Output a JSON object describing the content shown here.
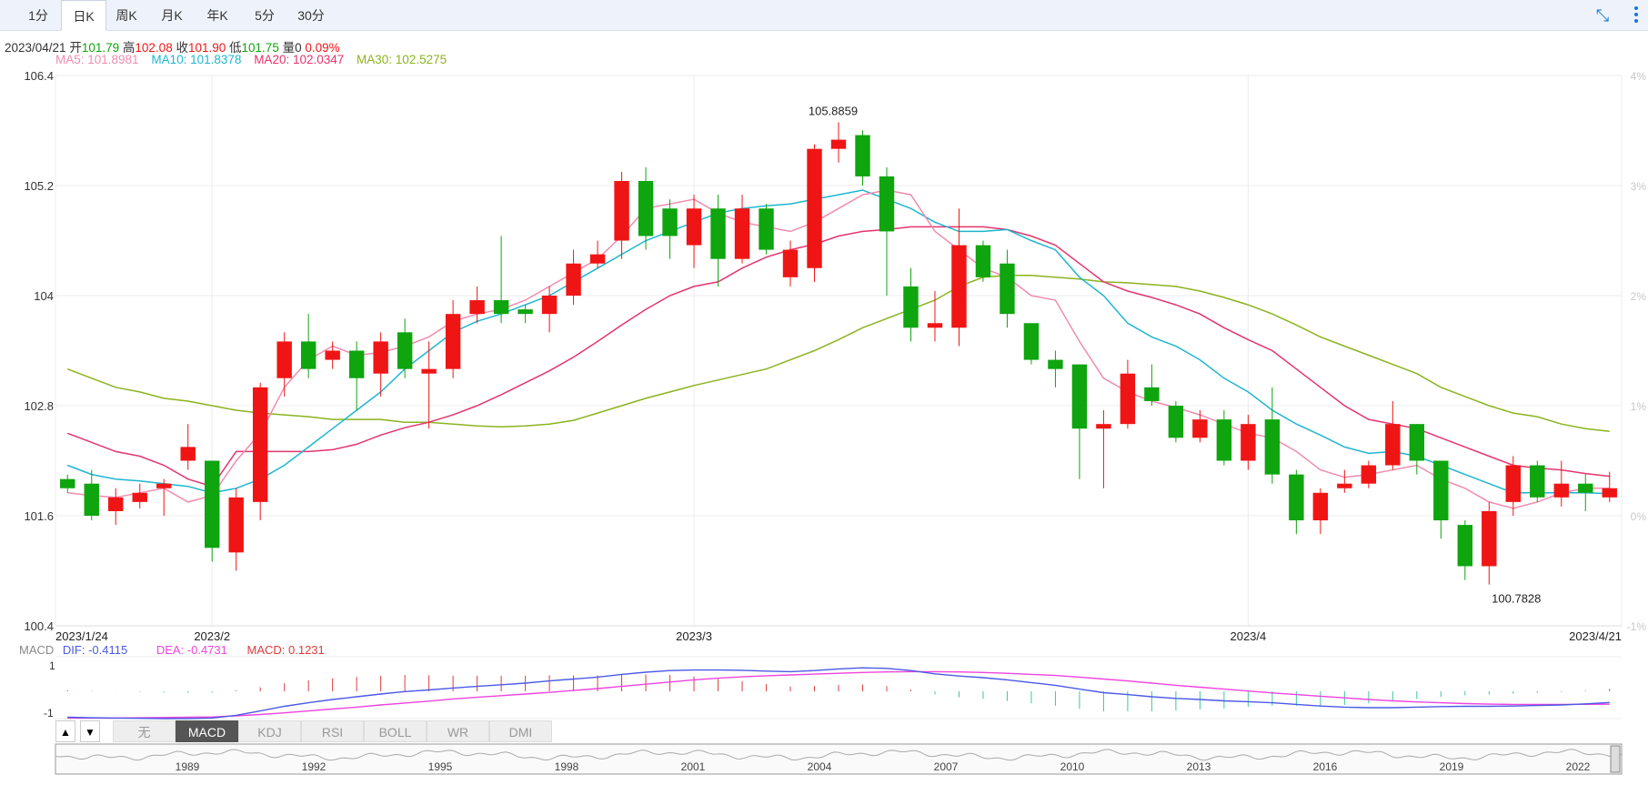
{
  "tabs": [
    {
      "label": "1分",
      "active": false
    },
    {
      "label": "日K",
      "active": true
    },
    {
      "label": "周K",
      "active": false
    },
    {
      "label": "月K",
      "active": false
    },
    {
      "label": "年K",
      "active": false
    },
    {
      "label": "5分",
      "active": false
    },
    {
      "label": "30分",
      "active": false
    }
  ],
  "info": {
    "date": "2023/04/21",
    "open_label": "开",
    "open": "101.79",
    "high_label": "高",
    "high": "102.08",
    "close_label": "收",
    "close": "101.90",
    "low_label": "低",
    "low": "101.75",
    "vol_label": "量",
    "vol": "0",
    "pct": "0.09%"
  },
  "ma": [
    {
      "label": "MA5: 101.8981",
      "color": "#f08cb0"
    },
    {
      "label": "MA10: 101.8378",
      "color": "#1fb6d0"
    },
    {
      "label": "MA20: 102.0347",
      "color": "#e4346d"
    },
    {
      "label": "MA30: 102.5275",
      "color": "#8bb31e"
    }
  ],
  "colors": {
    "up": "#f01515",
    "down": "#0ea50e",
    "grid": "#ececec",
    "axis": "#444"
  },
  "macd": {
    "label": "MACD",
    "dif_label": "DIF: -0.4115",
    "dea_label": "DEA: -0.4731",
    "macd_label": "MACD: 0.1231",
    "dif_color": "#4b59e6",
    "dea_color": "#ee44dd",
    "macd_color": "#e03a3a",
    "yticks": [
      "1",
      "-1"
    ]
  },
  "indicator_tabs": [
    {
      "label": "无",
      "active": false
    },
    {
      "label": "MACD",
      "active": true
    },
    {
      "label": "KDJ",
      "active": false
    },
    {
      "label": "RSI",
      "active": false
    },
    {
      "label": "BOLL",
      "active": false
    },
    {
      "label": "WR",
      "active": false
    },
    {
      "label": "DMI",
      "active": false
    }
  ],
  "nav_buttons": {
    "up": "▲",
    "down": "▼"
  },
  "timeline_years": [
    "1989",
    "1992",
    "1995",
    "1998",
    "2001",
    "2004",
    "2007",
    "2010",
    "2013",
    "2016",
    "2019",
    "2022"
  ],
  "chart_data": {
    "type": "candlestick",
    "ylim": [
      100.4,
      106.4
    ],
    "yticks": [
      "106.4",
      "105.2",
      "104",
      "102.8",
      "101.6",
      "100.4"
    ],
    "right_pct_ticks": [
      "4%",
      "3%",
      "2%",
      "1%",
      "0%",
      "-1%"
    ],
    "x_tick_labels": [
      "2023/1/24",
      "2023/2",
      "2023/3",
      "2023/4",
      "2023/4/21"
    ],
    "annotations": {
      "max": "105.8859",
      "min": "100.7828"
    },
    "candles": [
      [
        102.0,
        101.9,
        102.05,
        101.85
      ],
      [
        101.95,
        101.6,
        102.1,
        101.55
      ],
      [
        101.65,
        101.8,
        101.9,
        101.5
      ],
      [
        101.75,
        101.85,
        101.95,
        101.68
      ],
      [
        101.9,
        101.95,
        102.0,
        101.6
      ],
      [
        102.2,
        102.35,
        102.6,
        102.1
      ],
      [
        102.2,
        101.25,
        102.2,
        101.1
      ],
      [
        101.2,
        101.8,
        101.9,
        101.0
      ],
      [
        101.75,
        103.0,
        103.05,
        101.55
      ],
      [
        103.1,
        103.5,
        103.6,
        102.9
      ],
      [
        103.5,
        103.2,
        103.8,
        103.1
      ],
      [
        103.3,
        103.4,
        103.5,
        103.2
      ],
      [
        103.4,
        103.1,
        103.5,
        102.75
      ],
      [
        103.15,
        103.5,
        103.6,
        102.9
      ],
      [
        103.6,
        103.2,
        103.75,
        103.1
      ],
      [
        103.15,
        103.2,
        103.5,
        102.55
      ],
      [
        103.2,
        103.8,
        103.95,
        103.1
      ],
      [
        103.8,
        103.95,
        104.1,
        103.7
      ],
      [
        103.95,
        103.8,
        104.65,
        103.7
      ],
      [
        103.85,
        103.8,
        103.9,
        103.7
      ],
      [
        103.8,
        104.0,
        104.1,
        103.6
      ],
      [
        104.0,
        104.35,
        104.5,
        103.9
      ],
      [
        104.35,
        104.45,
        104.6,
        104.3
      ],
      [
        104.6,
        105.25,
        105.35,
        104.4
      ],
      [
        105.25,
        104.65,
        105.4,
        104.5
      ],
      [
        104.95,
        104.65,
        105.05,
        104.4
      ],
      [
        104.55,
        104.95,
        105.1,
        104.3
      ],
      [
        104.95,
        104.4,
        105.1,
        104.1
      ],
      [
        104.4,
        104.95,
        105.1,
        104.35
      ],
      [
        104.95,
        104.5,
        105.0,
        104.45
      ],
      [
        104.2,
        104.5,
        104.6,
        104.1
      ],
      [
        104.3,
        105.6,
        105.65,
        104.15
      ],
      [
        105.6,
        105.7,
        105.89,
        105.45
      ],
      [
        105.75,
        105.3,
        105.8,
        105.2
      ],
      [
        105.3,
        104.7,
        105.4,
        104.0
      ],
      [
        104.1,
        103.65,
        104.3,
        103.5
      ],
      [
        103.65,
        103.7,
        104.05,
        103.5
      ],
      [
        103.65,
        104.55,
        104.95,
        103.45
      ],
      [
        104.55,
        104.2,
        104.6,
        104.15
      ],
      [
        104.35,
        103.8,
        104.5,
        103.65
      ],
      [
        103.7,
        103.3,
        103.7,
        103.25
      ],
      [
        103.3,
        103.2,
        103.4,
        103.0
      ],
      [
        103.25,
        102.55,
        103.25,
        102.0
      ],
      [
        102.55,
        102.6,
        102.75,
        101.9
      ],
      [
        102.6,
        103.15,
        103.3,
        102.55
      ],
      [
        103.0,
        102.85,
        103.25,
        102.8
      ],
      [
        102.8,
        102.45,
        102.85,
        102.4
      ],
      [
        102.45,
        102.65,
        102.75,
        102.4
      ],
      [
        102.65,
        102.2,
        102.75,
        102.15
      ],
      [
        102.2,
        102.6,
        102.7,
        102.1
      ],
      [
        102.65,
        102.05,
        103.0,
        101.95
      ],
      [
        102.05,
        101.55,
        102.1,
        101.4
      ],
      [
        101.55,
        101.85,
        101.9,
        101.4
      ],
      [
        101.9,
        101.95,
        102.1,
        101.85
      ],
      [
        101.95,
        102.15,
        102.2,
        101.9
      ],
      [
        102.15,
        102.6,
        102.85,
        102.1
      ],
      [
        102.6,
        102.2,
        102.6,
        102.05
      ],
      [
        102.2,
        101.55,
        102.2,
        101.35
      ],
      [
        101.5,
        101.05,
        101.55,
        100.9
      ],
      [
        101.05,
        101.65,
        101.75,
        100.85
      ],
      [
        101.75,
        102.15,
        102.25,
        101.6
      ],
      [
        102.15,
        101.8,
        102.2,
        101.75
      ],
      [
        101.8,
        101.95,
        102.2,
        101.7
      ],
      [
        101.95,
        101.85,
        102.05,
        101.65
      ],
      [
        101.8,
        101.9,
        102.08,
        101.75
      ]
    ],
    "ma5": [
      101.85,
      101.82,
      101.8,
      101.85,
      101.9,
      101.75,
      101.82,
      102.2,
      102.5,
      103.0,
      103.3,
      103.45,
      103.35,
      103.38,
      103.45,
      103.55,
      103.72,
      103.8,
      103.85,
      103.95,
      104.1,
      104.25,
      104.4,
      104.65,
      104.95,
      105.0,
      105.05,
      104.9,
      104.8,
      104.75,
      104.7,
      104.8,
      104.95,
      105.1,
      105.15,
      105.1,
      104.7,
      104.5,
      104.3,
      104.2,
      104.0,
      103.95,
      103.5,
      103.1,
      102.95,
      102.85,
      102.78,
      102.7,
      102.6,
      102.5,
      102.45,
      102.3,
      102.1,
      102.02,
      102.05,
      102.1,
      102.15,
      102.0,
      101.9,
      101.75,
      101.68,
      101.75,
      101.85,
      101.9,
      101.9
    ],
    "ma10": [
      102.15,
      102.05,
      102.0,
      101.98,
      101.95,
      101.92,
      101.85,
      101.9,
      102.0,
      102.15,
      102.35,
      102.55,
      102.75,
      102.95,
      103.2,
      103.4,
      103.6,
      103.72,
      103.8,
      103.9,
      104.0,
      104.15,
      104.3,
      104.45,
      104.6,
      104.7,
      104.8,
      104.9,
      104.95,
      104.98,
      105.0,
      105.05,
      105.1,
      105.15,
      105.05,
      104.95,
      104.8,
      104.7,
      104.7,
      104.72,
      104.6,
      104.5,
      104.2,
      104.0,
      103.7,
      103.55,
      103.45,
      103.3,
      103.1,
      102.95,
      102.75,
      102.6,
      102.48,
      102.35,
      102.28,
      102.3,
      102.25,
      102.15,
      102.05,
      101.95,
      101.85,
      101.85,
      101.85,
      101.85,
      101.84
    ],
    "ma20": [
      102.5,
      102.4,
      102.3,
      102.25,
      102.15,
      102.0,
      101.92,
      102.3,
      102.3,
      102.3,
      102.3,
      102.32,
      102.38,
      102.48,
      102.56,
      102.62,
      102.7,
      102.8,
      102.92,
      103.05,
      103.18,
      103.33,
      103.5,
      103.68,
      103.85,
      104.0,
      104.1,
      104.15,
      104.3,
      104.42,
      104.5,
      104.56,
      104.65,
      104.7,
      104.72,
      104.75,
      104.75,
      104.75,
      104.75,
      104.72,
      104.65,
      104.55,
      104.35,
      104.15,
      104.05,
      103.98,
      103.9,
      103.8,
      103.65,
      103.52,
      103.4,
      103.2,
      103.0,
      102.8,
      102.65,
      102.6,
      102.55,
      102.45,
      102.35,
      102.25,
      102.15,
      102.12,
      102.1,
      102.06,
      102.03
    ],
    "ma30": [
      103.2,
      103.1,
      103.0,
      102.95,
      102.88,
      102.85,
      102.8,
      102.75,
      102.72,
      102.7,
      102.68,
      102.65,
      102.65,
      102.65,
      102.62,
      102.62,
      102.6,
      102.58,
      102.57,
      102.58,
      102.6,
      102.64,
      102.72,
      102.8,
      102.88,
      102.95,
      103.02,
      103.08,
      103.14,
      103.2,
      103.3,
      103.4,
      103.52,
      103.65,
      103.75,
      103.85,
      103.95,
      104.1,
      104.2,
      104.22,
      104.22,
      104.2,
      104.18,
      104.15,
      104.14,
      104.12,
      104.1,
      104.05,
      103.98,
      103.9,
      103.8,
      103.68,
      103.55,
      103.45,
      103.35,
      103.25,
      103.15,
      103.0,
      102.9,
      102.8,
      102.72,
      102.68,
      102.6,
      102.55,
      102.52
    ],
    "macd_series": {
      "dif": [
        -0.95,
        -0.97,
        -0.98,
        -0.99,
        -1.0,
        -1.0,
        -0.98,
        -0.88,
        -0.72,
        -0.55,
        -0.42,
        -0.3,
        -0.2,
        -0.1,
        -0.01,
        0.05,
        0.12,
        0.18,
        0.24,
        0.3,
        0.38,
        0.45,
        0.52,
        0.62,
        0.7,
        0.76,
        0.78,
        0.78,
        0.77,
        0.74,
        0.72,
        0.76,
        0.82,
        0.86,
        0.84,
        0.76,
        0.64,
        0.56,
        0.5,
        0.42,
        0.32,
        0.22,
        0.08,
        -0.05,
        -0.12,
        -0.2,
        -0.26,
        -0.3,
        -0.35,
        -0.38,
        -0.42,
        -0.48,
        -0.54,
        -0.58,
        -0.6,
        -0.6,
        -0.58,
        -0.56,
        -0.55,
        -0.55,
        -0.54,
        -0.52,
        -0.5,
        -0.46,
        -0.41
      ],
      "dea": [
        -0.98,
        -0.98,
        -0.98,
        -0.97,
        -0.96,
        -0.95,
        -0.94,
        -0.9,
        -0.85,
        -0.79,
        -0.72,
        -0.65,
        -0.58,
        -0.5,
        -0.43,
        -0.36,
        -0.28,
        -0.22,
        -0.16,
        -0.1,
        -0.04,
        0.03,
        0.1,
        0.18,
        0.26,
        0.34,
        0.42,
        0.48,
        0.53,
        0.57,
        0.6,
        0.63,
        0.66,
        0.69,
        0.71,
        0.72,
        0.72,
        0.71,
        0.69,
        0.66,
        0.62,
        0.58,
        0.52,
        0.45,
        0.38,
        0.3,
        0.22,
        0.15,
        0.08,
        0.01,
        -0.06,
        -0.12,
        -0.18,
        -0.24,
        -0.3,
        -0.35,
        -0.39,
        -0.42,
        -0.45,
        -0.47,
        -0.48,
        -0.48,
        -0.48,
        -0.475,
        -0.473
      ],
      "hist": [
        0.05,
        0.02,
        -0.01,
        -0.03,
        -0.06,
        -0.08,
        -0.06,
        0.04,
        0.2,
        0.4,
        0.55,
        0.65,
        0.72,
        0.78,
        0.82,
        0.8,
        0.78,
        0.78,
        0.78,
        0.78,
        0.8,
        0.8,
        0.8,
        0.84,
        0.84,
        0.82,
        0.74,
        0.62,
        0.5,
        0.36,
        0.24,
        0.26,
        0.32,
        0.34,
        0.26,
        0.08,
        -0.16,
        -0.3,
        -0.38,
        -0.48,
        -0.6,
        -0.72,
        -0.88,
        -1.0,
        -1.0,
        -1.0,
        -0.96,
        -0.9,
        -0.86,
        -0.78,
        -0.72,
        -0.72,
        -0.72,
        -0.68,
        -0.6,
        -0.5,
        -0.38,
        -0.28,
        -0.2,
        -0.16,
        -0.12,
        -0.08,
        -0.04,
        0.03,
        0.12
      ]
    }
  }
}
